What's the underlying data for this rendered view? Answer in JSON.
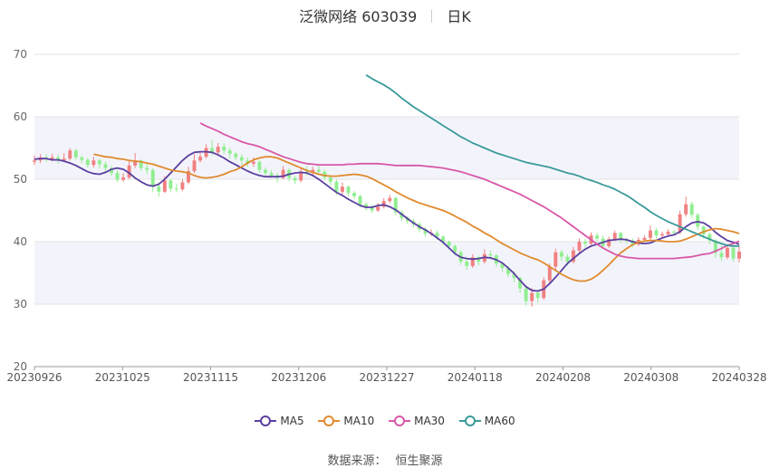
{
  "header": {
    "title": "泛微网络 603039",
    "period": "日K"
  },
  "source": {
    "label": "数据来源：",
    "value": "恒生聚源"
  },
  "colors": {
    "up": "#f08080",
    "down": "#90ee90",
    "MA5": "#5b3fa0",
    "MA10": "#e08a2e",
    "MA30": "#d857a8",
    "MA60": "#3a9a9a"
  },
  "chart_data": {
    "type": "candlestick",
    "ylim": [
      20,
      70
    ],
    "yticks": [
      "70",
      "60",
      "50",
      "40",
      "30",
      "20"
    ],
    "xticks": [
      "20230926",
      "20231025",
      "20231115",
      "20231206",
      "20231227",
      "20240118",
      "20240208",
      "20240308",
      "20240328"
    ],
    "grid": true,
    "legend": "bottom",
    "num_bars": 120,
    "candles": [
      [
        52.8,
        53.0,
        53.8,
        52.3
      ],
      [
        53.0,
        53.5,
        54.0,
        52.6
      ],
      [
        53.5,
        53.2,
        54.0,
        52.7
      ],
      [
        53.2,
        53.5,
        54.1,
        52.9
      ],
      [
        53.5,
        53.0,
        54.0,
        52.5
      ],
      [
        53.0,
        53.3,
        54.2,
        52.8
      ],
      [
        53.3,
        54.6,
        55.0,
        53.0
      ],
      [
        54.6,
        53.5,
        54.9,
        53.1
      ],
      [
        53.5,
        53.1,
        53.8,
        52.5
      ],
      [
        53.1,
        52.3,
        53.4,
        51.8
      ],
      [
        52.3,
        53.0,
        53.6,
        51.9
      ],
      [
        53.0,
        52.4,
        53.3,
        51.7
      ],
      [
        52.4,
        51.8,
        52.8,
        51.2
      ],
      [
        51.8,
        51.0,
        52.1,
        50.5
      ],
      [
        51.0,
        49.9,
        51.5,
        49.5
      ],
      [
        49.9,
        50.3,
        51.0,
        49.6
      ],
      [
        50.3,
        52.2,
        53.0,
        50.0
      ],
      [
        52.2,
        53.0,
        54.2,
        51.8
      ],
      [
        53.0,
        51.8,
        53.2,
        51.3
      ],
      [
        51.8,
        51.5,
        52.5,
        50.8
      ],
      [
        51.5,
        48.8,
        51.7,
        48.0
      ],
      [
        48.8,
        48.0,
        49.5,
        47.2
      ],
      [
        48.0,
        49.8,
        50.5,
        47.8
      ],
      [
        49.8,
        48.5,
        50.1,
        48.0
      ],
      [
        48.5,
        48.4,
        49.3,
        47.9
      ],
      [
        48.4,
        49.5,
        50.0,
        48.1
      ],
      [
        49.5,
        51.3,
        52.0,
        49.2
      ],
      [
        51.3,
        53.0,
        54.0,
        51.0
      ],
      [
        53.0,
        53.6,
        54.3,
        52.7
      ],
      [
        53.6,
        55.0,
        55.6,
        53.3
      ],
      [
        55.0,
        54.3,
        56.3,
        53.8
      ],
      [
        54.3,
        55.2,
        55.8,
        53.9
      ],
      [
        55.2,
        54.6,
        55.8,
        54.0
      ],
      [
        54.6,
        54.1,
        55.0,
        53.3
      ],
      [
        54.1,
        53.5,
        54.4,
        53.0
      ],
      [
        53.5,
        53.0,
        54.0,
        52.3
      ],
      [
        53.0,
        52.5,
        53.5,
        52.0
      ],
      [
        52.5,
        52.8,
        53.5,
        52.0
      ],
      [
        52.8,
        51.5,
        53.0,
        51.0
      ],
      [
        51.5,
        51.0,
        51.9,
        50.4
      ],
      [
        51.0,
        50.6,
        51.4,
        50.2
      ],
      [
        50.6,
        50.2,
        51.0,
        49.5
      ],
      [
        50.2,
        51.5,
        52.1,
        50.0
      ],
      [
        51.5,
        50.2,
        51.7,
        49.7
      ],
      [
        50.2,
        49.8,
        50.5,
        49.2
      ],
      [
        49.8,
        51.2,
        51.7,
        49.5
      ],
      [
        51.2,
        51.0,
        52.1,
        50.6
      ],
      [
        51.0,
        51.5,
        52.0,
        50.5
      ],
      [
        51.5,
        51.2,
        52.2,
        50.8
      ],
      [
        51.2,
        50.3,
        51.5,
        49.8
      ],
      [
        50.3,
        49.6,
        50.7,
        49.0
      ],
      [
        49.6,
        48.0,
        49.9,
        47.5
      ],
      [
        48.0,
        48.8,
        49.5,
        47.6
      ],
      [
        48.8,
        47.8,
        49.0,
        47.3
      ],
      [
        47.8,
        47.3,
        48.1,
        46.8
      ],
      [
        47.3,
        46.0,
        47.5,
        45.5
      ],
      [
        46.0,
        45.4,
        46.3,
        45.0
      ],
      [
        45.4,
        45.0,
        45.9,
        44.6
      ],
      [
        45.0,
        45.6,
        46.2,
        44.8
      ],
      [
        45.6,
        46.5,
        47.0,
        45.3
      ],
      [
        46.5,
        47.0,
        47.5,
        46.2
      ],
      [
        47.0,
        44.7,
        47.2,
        44.2
      ],
      [
        44.7,
        43.8,
        45.0,
        43.3
      ],
      [
        43.8,
        43.3,
        44.1,
        42.8
      ],
      [
        43.3,
        42.8,
        43.7,
        42.3
      ],
      [
        42.8,
        42.0,
        43.1,
        41.5
      ],
      [
        42.0,
        41.3,
        42.4,
        40.8
      ],
      [
        41.3,
        41.4,
        42.0,
        40.9
      ],
      [
        41.4,
        40.8,
        41.8,
        40.3
      ],
      [
        40.8,
        40.0,
        41.0,
        39.5
      ],
      [
        40.0,
        39.3,
        40.2,
        38.8
      ],
      [
        39.3,
        38.3,
        39.6,
        37.8
      ],
      [
        38.3,
        36.8,
        38.6,
        36.3
      ],
      [
        36.8,
        36.1,
        37.2,
        35.5
      ],
      [
        36.1,
        37.5,
        38.0,
        35.8
      ],
      [
        37.5,
        36.8,
        37.8,
        36.2
      ],
      [
        36.8,
        38.0,
        38.8,
        36.5
      ],
      [
        38.0,
        37.8,
        38.6,
        37.2
      ],
      [
        37.8,
        36.5,
        38.0,
        36.0
      ],
      [
        36.5,
        35.8,
        36.7,
        35.2
      ],
      [
        35.8,
        34.8,
        36.1,
        34.3
      ],
      [
        34.8,
        34.2,
        35.3,
        33.5
      ],
      [
        34.2,
        32.5,
        34.4,
        31.8
      ],
      [
        32.5,
        30.5,
        32.7,
        29.8
      ],
      [
        30.5,
        31.8,
        32.6,
        29.6
      ],
      [
        31.8,
        31.0,
        32.0,
        30.2
      ],
      [
        31.0,
        33.8,
        34.3,
        30.7
      ],
      [
        33.8,
        36.0,
        36.5,
        33.2
      ],
      [
        36.0,
        38.3,
        38.9,
        35.5
      ],
      [
        38.3,
        37.6,
        38.7,
        36.9
      ],
      [
        37.6,
        36.8,
        38.0,
        36.2
      ],
      [
        36.8,
        38.6,
        39.2,
        36.5
      ],
      [
        38.6,
        40.0,
        40.5,
        38.2
      ],
      [
        40.0,
        39.7,
        40.4,
        39.1
      ],
      [
        39.7,
        41.0,
        41.5,
        39.4
      ],
      [
        41.0,
        40.5,
        41.4,
        39.9
      ],
      [
        40.5,
        39.3,
        41.0,
        39.0
      ],
      [
        39.3,
        40.4,
        40.8,
        39.0
      ],
      [
        40.4,
        41.4,
        41.8,
        40.1
      ],
      [
        41.4,
        40.3,
        41.6,
        39.8
      ],
      [
        40.3,
        40.2,
        40.7,
        39.7
      ],
      [
        40.2,
        39.6,
        40.5,
        39.1
      ],
      [
        39.6,
        40.3,
        40.7,
        39.3
      ],
      [
        40.3,
        40.6,
        41.0,
        40.0
      ],
      [
        40.6,
        41.8,
        42.6,
        40.3
      ],
      [
        41.8,
        41.0,
        42.2,
        40.5
      ],
      [
        41.0,
        41.2,
        41.6,
        40.7
      ],
      [
        41.2,
        41.6,
        42.0,
        40.8
      ],
      [
        41.6,
        41.5,
        41.9,
        41.0
      ],
      [
        41.5,
        44.4,
        45.0,
        41.2
      ],
      [
        44.4,
        46.0,
        47.2,
        44.0
      ],
      [
        46.0,
        44.3,
        46.4,
        43.8
      ],
      [
        44.3,
        42.4,
        44.6,
        41.9
      ],
      [
        42.4,
        41.2,
        42.6,
        40.5
      ],
      [
        41.2,
        40.2,
        41.5,
        39.6
      ],
      [
        40.2,
        38.2,
        40.4,
        37.4
      ],
      [
        38.2,
        37.5,
        39.4,
        36.9
      ],
      [
        37.5,
        39.0,
        39.6,
        37.2
      ],
      [
        39.0,
        37.3,
        39.2,
        36.8
      ],
      [
        37.3,
        38.4,
        39.4,
        36.7
      ]
    ],
    "series": [
      {
        "name": "MA5",
        "values": [
          53.2,
          53.3,
          53.3,
          53.1,
          53.1,
          52.9,
          52.6,
          52.2,
          51.7,
          51.2,
          50.9,
          50.8,
          51.1,
          51.6,
          51.8,
          51.6,
          51.0,
          50.2,
          49.6,
          49.1,
          48.9,
          49.2,
          50.0,
          51.0,
          52.0,
          53.0,
          53.8,
          54.3,
          54.4,
          54.4,
          54.3,
          53.9,
          53.4,
          52.8,
          52.3,
          51.8,
          51.3,
          50.9,
          50.6,
          50.4,
          50.4,
          50.4,
          50.5,
          50.8,
          51.0,
          51.1,
          51.0,
          50.6,
          50.0,
          49.3,
          48.6,
          47.9,
          47.4,
          46.8,
          46.3,
          45.8,
          45.5,
          45.5,
          45.8,
          45.9,
          45.6,
          45.1,
          44.4,
          43.7,
          43.0,
          42.4,
          41.9,
          41.3,
          40.6,
          39.9,
          39.0,
          38.1,
          37.5,
          37.3,
          37.2,
          37.3,
          37.5,
          37.4,
          37.1,
          36.6,
          35.8,
          34.9,
          33.8,
          32.8,
          32.2,
          32.1,
          32.4,
          33.3,
          34.3,
          35.4,
          36.5,
          37.3,
          38.1,
          38.8,
          39.3,
          39.6,
          39.9,
          40.2,
          40.3,
          40.4,
          40.3,
          40.0,
          39.8,
          39.7,
          39.8,
          40.2,
          40.6,
          40.9,
          41.1,
          41.6,
          42.4,
          43.0,
          43.2,
          43.0,
          42.4,
          41.5,
          40.8,
          40.2,
          39.9,
          39.6
        ]
      },
      {
        "name": "MA10",
        "values": [
          54.0,
          53.8,
          53.6,
          53.5,
          53.3,
          53.2,
          53.0,
          52.9,
          52.8,
          52.6,
          52.4,
          52.1,
          51.8,
          51.5,
          51.3,
          51.2,
          51.0,
          50.6,
          50.3,
          50.2,
          50.3,
          50.5,
          50.8,
          51.2,
          51.5,
          52.0,
          52.6,
          53.1,
          53.4,
          53.6,
          53.6,
          53.4,
          53.0,
          52.6,
          52.2,
          51.8,
          51.4,
          51.1,
          50.8,
          50.6,
          50.5,
          50.5,
          50.6,
          50.7,
          50.8,
          50.7,
          50.5,
          50.1,
          49.6,
          49.1,
          48.6,
          48.0,
          47.5,
          47.0,
          46.6,
          46.2,
          45.9,
          45.6,
          45.3,
          45.0,
          44.6,
          44.1,
          43.6,
          43.1,
          42.5,
          42.0,
          41.4,
          40.9,
          40.3,
          39.7,
          39.2,
          38.7,
          38.2,
          37.8,
          37.4,
          37.1,
          36.6,
          36.0,
          35.4,
          34.8,
          34.3,
          33.9,
          33.7,
          33.7,
          34.0,
          34.6,
          35.4,
          36.3,
          37.3,
          38.2,
          38.9,
          39.5,
          39.9,
          40.1,
          40.2,
          40.2,
          40.1,
          40.0,
          40.0,
          40.1,
          40.4,
          40.8,
          41.2,
          41.6,
          41.9,
          42.1,
          42.0,
          41.8,
          41.6,
          41.3
        ]
      },
      {
        "name": "MA30",
        "values": [
          59.0,
          58.5,
          58.1,
          57.7,
          57.2,
          56.8,
          56.4,
          56.0,
          55.7,
          55.5,
          55.2,
          54.8,
          54.4,
          54.0,
          53.6,
          53.3,
          53.0,
          52.7,
          52.5,
          52.4,
          52.3,
          52.3,
          52.3,
          52.3,
          52.3,
          52.4,
          52.4,
          52.5,
          52.5,
          52.5,
          52.5,
          52.4,
          52.3,
          52.2,
          52.2,
          52.2,
          52.2,
          52.2,
          52.1,
          52.0,
          51.9,
          51.8,
          51.6,
          51.4,
          51.2,
          50.9,
          50.6,
          50.3,
          50.0,
          49.6,
          49.2,
          48.8,
          48.4,
          48.0,
          47.6,
          47.1,
          46.6,
          46.1,
          45.6,
          45.0,
          44.4,
          43.8,
          43.1,
          42.4,
          41.7,
          41.0,
          40.3,
          39.6,
          39.0,
          38.5,
          38.0,
          37.7,
          37.5,
          37.4,
          37.3,
          37.3,
          37.3,
          37.3,
          37.3,
          37.3,
          37.3,
          37.4,
          37.5,
          37.6,
          37.8,
          38.0,
          38.1,
          38.5,
          38.9,
          39.4,
          39.7,
          40.1
        ]
      },
      {
        "name": "MA60",
        "values": [
          66.7,
          66.1,
          65.6,
          65.1,
          64.5,
          63.8,
          63.0,
          62.3,
          61.6,
          61.0,
          60.4,
          59.8,
          59.2,
          58.6,
          58.0,
          57.4,
          56.8,
          56.3,
          55.8,
          55.4,
          55.0,
          54.6,
          54.2,
          53.9,
          53.6,
          53.3,
          53.0,
          52.7,
          52.5,
          52.3,
          52.1,
          51.9,
          51.6,
          51.3,
          51.0,
          50.8,
          50.5,
          50.1,
          49.8,
          49.5,
          49.1,
          48.8,
          48.4,
          47.9,
          47.4,
          46.8,
          46.1,
          45.5,
          44.8,
          44.2,
          43.7,
          43.2,
          42.8,
          42.4,
          42.0,
          41.6,
          41.2,
          40.8,
          40.4,
          40.0,
          39.7,
          39.4,
          39.3,
          39.3
        ]
      }
    ]
  }
}
